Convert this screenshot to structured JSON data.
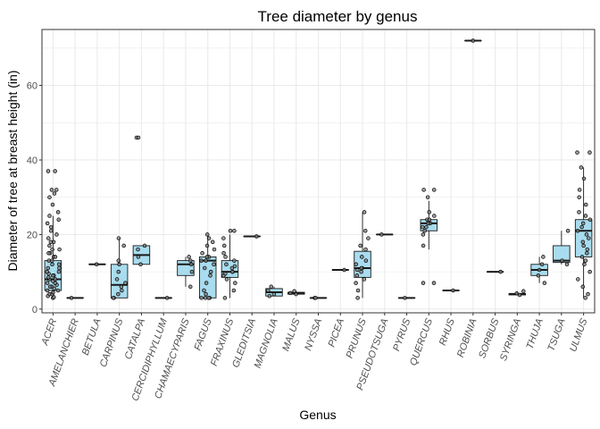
{
  "chart_data": {
    "type": "boxplot",
    "title": "Tree diameter by genus",
    "xlabel": "Genus",
    "ylabel": "Diameter of tree at breast height (in)",
    "ylim": [
      -1,
      75
    ],
    "yticks": [
      0,
      20,
      40,
      60
    ],
    "grid": true,
    "legend": "none",
    "colors": {
      "box_fill": "#a8dcee",
      "outline": "#1a1a1a",
      "grid": "#ebebeb",
      "panel_border": "#333333",
      "point_fill": "#7f7f7f"
    },
    "categories": [
      "ACER",
      "AMELANCHIER",
      "BETULA",
      "CARPINUS",
      "CATALPA",
      "CERCIDIPHYLLUM",
      "CHAMAECYPARIS",
      "FAGUS",
      "FRAXINUS",
      "GLEDITSIA",
      "MAGNOLIA",
      "MALUS",
      "NYSSA",
      "PICEA",
      "PRUNUS",
      "PSEUDOTSUGA",
      "PYRUS",
      "QUERCUS",
      "RHUS",
      "ROBINIA",
      "SORBUS",
      "SYRINGA",
      "THUJA",
      "TSUGA",
      "ULMUS"
    ],
    "boxes": [
      {
        "genus": "ACER",
        "min": 3,
        "q1": 5,
        "median": 8,
        "q3": 13,
        "max": 25
      },
      {
        "genus": "AMELANCHIER",
        "min": 3,
        "q1": 3,
        "median": 3,
        "q3": 3,
        "max": 3
      },
      {
        "genus": "BETULA",
        "min": 12,
        "q1": 12,
        "median": 12,
        "q3": 12,
        "max": 12
      },
      {
        "genus": "CARPINUS",
        "min": 3,
        "q1": 3,
        "median": 6.5,
        "q3": 12,
        "max": 19
      },
      {
        "genus": "CATALPA",
        "min": 12,
        "q1": 12,
        "median": 14.5,
        "q3": 17,
        "max": 17
      },
      {
        "genus": "CERCIDIPHYLLUM",
        "min": 3,
        "q1": 3,
        "median": 3,
        "q3": 3,
        "max": 3
      },
      {
        "genus": "CHAMAECYPARIS",
        "min": 6,
        "q1": 9,
        "median": 12,
        "q3": 13,
        "max": 14
      },
      {
        "genus": "FAGUS",
        "min": 3,
        "q1": 3,
        "median": 13,
        "q3": 14,
        "max": 20
      },
      {
        "genus": "FRAXINUS",
        "min": 3,
        "q1": 8.5,
        "median": 10,
        "q3": 13,
        "max": 20
      },
      {
        "genus": "GLEDITSIA",
        "min": 19.5,
        "q1": 19.5,
        "median": 19.5,
        "q3": 19.5,
        "max": 19.5
      },
      {
        "genus": "MAGNOLIA",
        "min": 3.5,
        "q1": 3.5,
        "median": 4.5,
        "q3": 5.5,
        "max": 6
      },
      {
        "genus": "MALUS",
        "min": 4,
        "q1": 4,
        "median": 4.3,
        "q3": 4.5,
        "max": 4.8
      },
      {
        "genus": "NYSSA",
        "min": 3,
        "q1": 3,
        "median": 3,
        "q3": 3,
        "max": 3
      },
      {
        "genus": "PICEA",
        "min": 10.5,
        "q1": 10.5,
        "median": 10.5,
        "q3": 10.5,
        "max": 10.5
      },
      {
        "genus": "PRUNUS",
        "min": 3,
        "q1": 8.5,
        "median": 11,
        "q3": 15.5,
        "max": 26
      },
      {
        "genus": "PSEUDOTSUGA",
        "min": 20,
        "q1": 20,
        "median": 20,
        "q3": 20,
        "max": 20
      },
      {
        "genus": "PYRUS",
        "min": 3,
        "q1": 3,
        "median": 3,
        "q3": 3,
        "max": 3
      },
      {
        "genus": "QUERCUS",
        "min": 16,
        "q1": 21,
        "median": 23,
        "q3": 24,
        "max": 29
      },
      {
        "genus": "RHUS",
        "min": 5,
        "q1": 5,
        "median": 5,
        "q3": 5,
        "max": 5
      },
      {
        "genus": "ROBINIA",
        "min": 72,
        "q1": 72,
        "median": 72,
        "q3": 72,
        "max": 72
      },
      {
        "genus": "SORBUS",
        "min": 10,
        "q1": 10,
        "median": 10,
        "q3": 10,
        "max": 10
      },
      {
        "genus": "SYRINGA",
        "min": 3.8,
        "q1": 3.8,
        "median": 4,
        "q3": 4.2,
        "max": 4.8
      },
      {
        "genus": "THUJA",
        "min": 7,
        "q1": 9,
        "median": 10.5,
        "q3": 12,
        "max": 14
      },
      {
        "genus": "TSUGA",
        "min": 12,
        "q1": 12.5,
        "median": 13,
        "q3": 17,
        "max": 21
      },
      {
        "genus": "ULMUS",
        "min": 3,
        "q1": 14,
        "median": 21,
        "q3": 24,
        "max": 38
      }
    ],
    "points": {
      "ACER": [
        3,
        3.2,
        3.5,
        4,
        4,
        4.5,
        5,
        5,
        5.5,
        6,
        6,
        6.5,
        7,
        7,
        7.5,
        8,
        8,
        8.5,
        9,
        9,
        9.5,
        10,
        10,
        11,
        11,
        12,
        12,
        13,
        13,
        14,
        14,
        15,
        15,
        16,
        16,
        17,
        18,
        18,
        19,
        20,
        21,
        22,
        23,
        24,
        25,
        26,
        28,
        30,
        31,
        32,
        32,
        37,
        37
      ],
      "AMELANCHIER": [
        3
      ],
      "BETULA": [
        12
      ],
      "CARPINUS": [
        3,
        3,
        4,
        5,
        6,
        7,
        8,
        10,
        12,
        13,
        17,
        19
      ],
      "CATALPA": [
        12,
        14,
        16,
        17,
        46,
        46
      ],
      "CERCIDIPHYLLUM": [
        3
      ],
      "CHAMAECYPARIS": [
        6,
        10,
        12,
        13,
        14
      ],
      "FAGUS": [
        3,
        3,
        3,
        3,
        4,
        5,
        7,
        9,
        10,
        11,
        12,
        13,
        13,
        14,
        14,
        15,
        16,
        17,
        18,
        19,
        20
      ],
      "FRAXINUS": [
        3,
        5,
        7,
        8,
        9,
        9.5,
        10,
        10,
        11,
        11.5,
        12,
        13,
        14,
        15,
        17,
        19,
        21,
        21
      ],
      "GLEDITSIA": [
        19.5
      ],
      "MAGNOLIA": [
        3.5,
        4,
        5,
        6
      ],
      "MALUS": [
        4,
        4.3,
        4.8
      ],
      "NYSSA": [
        3,
        3
      ],
      "PICEA": [
        10.5
      ],
      "PRUNUS": [
        3,
        5,
        7,
        8,
        9,
        10,
        10.5,
        11,
        11,
        12,
        13,
        14,
        16,
        17,
        19,
        21,
        26
      ],
      "PSEUDOTSUGA": [
        20
      ],
      "PYRUS": [
        3
      ],
      "QUERCUS": [
        7,
        7,
        17,
        20,
        21,
        22,
        22,
        23,
        23,
        24,
        24,
        25,
        26,
        30,
        32,
        32
      ],
      "RHUS": [
        5
      ],
      "ROBINIA": [
        72
      ],
      "SORBUS": [
        10
      ],
      "SYRINGA": [
        3.8,
        4.2,
        4.8
      ],
      "THUJA": [
        7,
        9,
        10.5,
        12,
        14
      ],
      "TSUGA": [
        12,
        13,
        21
      ],
      "ULMUS": [
        3,
        4,
        6,
        8,
        10,
        12,
        13,
        14,
        15,
        16,
        17,
        18,
        19,
        20,
        21,
        22,
        23,
        24,
        25,
        26,
        28,
        30,
        32,
        35,
        38,
        42,
        42
      ]
    }
  }
}
